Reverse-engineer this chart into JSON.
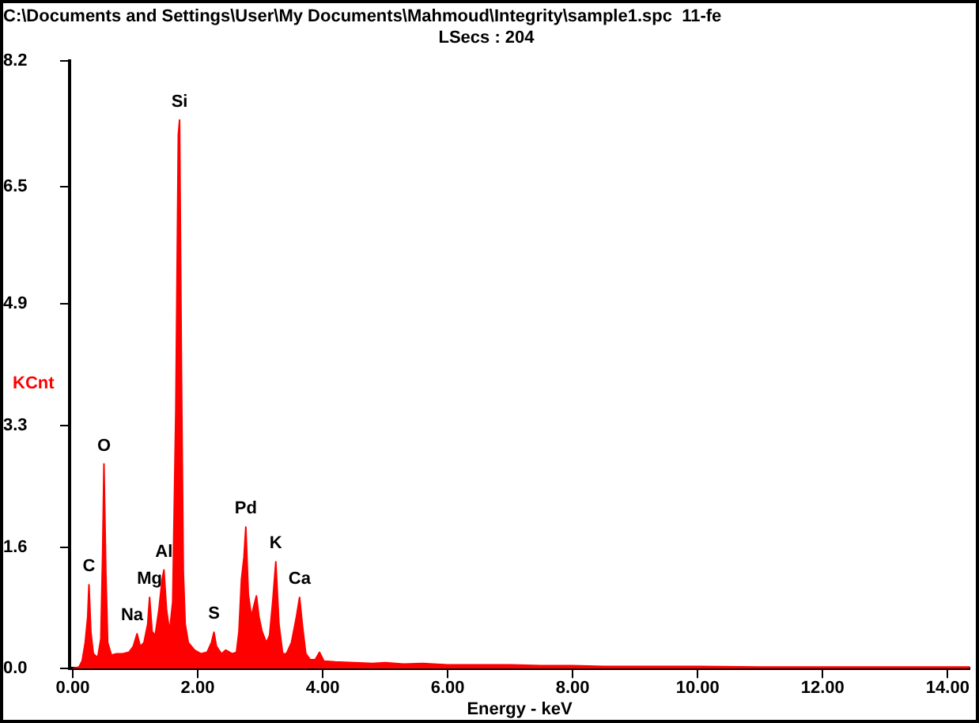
{
  "chart_data": {
    "type": "area",
    "title": "C:\\Documents and Settings\\User\\My Documents\\Mahmoud\\Integrity\\sample1.spc  11-fe",
    "subtitle": "LSecs : 204",
    "xlabel": "Energy - keV",
    "ylabel": "KCnt",
    "xlim": [
      -0.05,
      14.35
    ],
    "ylim": [
      0,
      8.2
    ],
    "xticks": [
      {
        "value": 0,
        "label": "0.00"
      },
      {
        "value": 2,
        "label": "2.00"
      },
      {
        "value": 4,
        "label": "4.00"
      },
      {
        "value": 6,
        "label": "6.00"
      },
      {
        "value": 8,
        "label": "8.00"
      },
      {
        "value": 10,
        "label": "10.00"
      },
      {
        "value": 12,
        "label": "12.00"
      },
      {
        "value": 14,
        "label": "14.00"
      }
    ],
    "yticks": [
      {
        "value": 0,
        "label": "0.0"
      },
      {
        "value": 1.64,
        "label": "1.6"
      },
      {
        "value": 3.28,
        "label": "3.3"
      },
      {
        "value": 4.92,
        "label": "4.9"
      },
      {
        "value": 6.5,
        "label": "6.5"
      },
      8.2
    ],
    "grid": false,
    "legend": false,
    "marker": "none",
    "series": [
      {
        "color": "#ff0000",
        "x": [
          0,
          0.1,
          0.15,
          0.2,
          0.24,
          0.26,
          0.29,
          0.33,
          0.4,
          0.45,
          0.48,
          0.5,
          0.53,
          0.56,
          0.62,
          0.7,
          0.8,
          0.9,
          0.97,
          1.03,
          1.08,
          1.14,
          1.2,
          1.23,
          1.27,
          1.32,
          1.38,
          1.43,
          1.46,
          1.5,
          1.55,
          1.6,
          1.65,
          1.69,
          1.71,
          1.74,
          1.77,
          1.8,
          1.85,
          1.95,
          2.05,
          2.15,
          2.22,
          2.26,
          2.3,
          2.38,
          2.45,
          2.55,
          2.62,
          2.66,
          2.7,
          2.74,
          2.77,
          2.81,
          2.86,
          2.9,
          2.94,
          2.98,
          3.03,
          3.1,
          3.15,
          3.2,
          3.25,
          3.3,
          3.36,
          3.42,
          3.5,
          3.58,
          3.63,
          3.68,
          3.73,
          3.8,
          3.88,
          3.95,
          4.02,
          4.2,
          4.5,
          4.8,
          5,
          5.3,
          5.6,
          6,
          6.5,
          7,
          7.5,
          8,
          8.5,
          9,
          10,
          11,
          12,
          13,
          14,
          14.35
        ],
        "values": [
          0,
          0.02,
          0.1,
          0.35,
          0.7,
          1.13,
          0.5,
          0.2,
          0.15,
          0.4,
          1.6,
          2.76,
          1.3,
          0.35,
          0.18,
          0.2,
          0.2,
          0.22,
          0.3,
          0.47,
          0.3,
          0.35,
          0.6,
          0.96,
          0.5,
          0.45,
          0.8,
          1.2,
          1.33,
          0.8,
          0.5,
          0.9,
          3.5,
          7.2,
          7.4,
          4,
          1.3,
          0.6,
          0.35,
          0.25,
          0.2,
          0.22,
          0.35,
          0.49,
          0.3,
          0.2,
          0.25,
          0.2,
          0.22,
          0.5,
          1.2,
          1.5,
          1.91,
          1,
          0.7,
          0.85,
          0.98,
          0.7,
          0.5,
          0.35,
          0.45,
          0.9,
          1.44,
          0.6,
          0.2,
          0.2,
          0.35,
          0.7,
          0.96,
          0.55,
          0.2,
          0.12,
          0.12,
          0.22,
          0.1,
          0.09,
          0.08,
          0.07,
          0.08,
          0.06,
          0.07,
          0.05,
          0.05,
          0.05,
          0.04,
          0.04,
          0.03,
          0.03,
          0.03,
          0.02,
          0.02,
          0.02,
          0.02,
          0.02
        ]
      }
    ],
    "annotations": [
      {
        "text": "C",
        "x": 0.26,
        "y": 1.13
      },
      {
        "text": "O",
        "x": 0.5,
        "y": 2.76
      },
      {
        "text": "Na",
        "x": 0.95,
        "y": 0.47
      },
      {
        "text": "Mg",
        "x": 1.23,
        "y": 0.96
      },
      {
        "text": "Al",
        "x": 1.46,
        "y": 1.33
      },
      {
        "text": "Si",
        "x": 1.71,
        "y": 7.4
      },
      {
        "text": "S",
        "x": 2.26,
        "y": 0.49
      },
      {
        "text": "Pd",
        "x": 2.77,
        "y": 1.91
      },
      {
        "text": "K",
        "x": 3.25,
        "y": 1.44
      },
      {
        "text": "Ca",
        "x": 3.63,
        "y": 0.96
      }
    ]
  }
}
